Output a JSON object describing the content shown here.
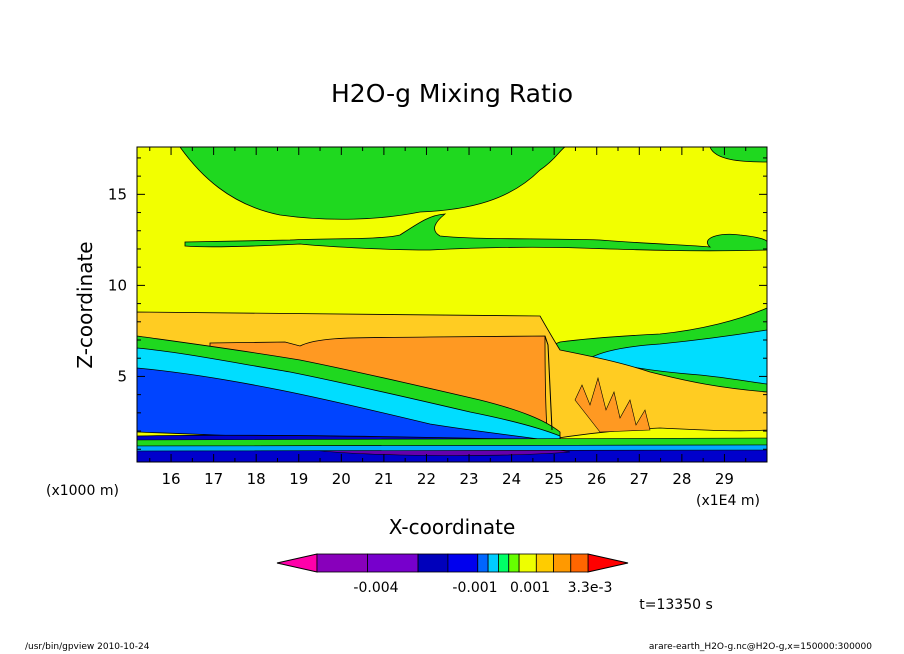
{
  "chart_data": {
    "type": "heatmap",
    "title": "H2O-g Mixing Ratio",
    "xlabel": "X-coordinate",
    "ylabel": "Z-coordinate",
    "x_unit": "(x1E4 m)",
    "y_unit": "(x1000 m)",
    "xlim": [
      15.2,
      30
    ],
    "ylim": [
      0.3,
      17.6
    ],
    "x_ticks": [
      "16",
      "17",
      "18",
      "19",
      "20",
      "21",
      "22",
      "23",
      "24",
      "25",
      "26",
      "27",
      "28",
      "29"
    ],
    "y_ticks": [
      "5",
      "10",
      "15"
    ],
    "colorbar": {
      "labels": [
        "-0.004",
        "-0.001",
        "0.001",
        "3.3e-3"
      ],
      "colors": [
        "#ff00aa",
        "#8800bb",
        "#7700cc",
        "#0000bb",
        "#0000ee",
        "#0066ff",
        "#00ccff",
        "#00ff66",
        "#66ff00",
        "#eeff00",
        "#ffcc00",
        "#ff9900",
        "#ff6600",
        "#ff0000"
      ]
    },
    "time_label": "t=13350 s",
    "colors": {
      "green": "#1fd81f",
      "yellow": "#f2ff00",
      "orange_light": "#ffcc22",
      "orange": "#ff9922",
      "cyan": "#00ddff",
      "light_blue": "#00aaff",
      "blue": "#0044ff",
      "dark_blue": "#0000cc",
      "purple": "#6600aa"
    }
  },
  "footer": {
    "left": "/usr/bin/gpview   2010-10-24",
    "right": "arare-earth_H2O-g.nc@H2O-g,x=150000:300000"
  }
}
